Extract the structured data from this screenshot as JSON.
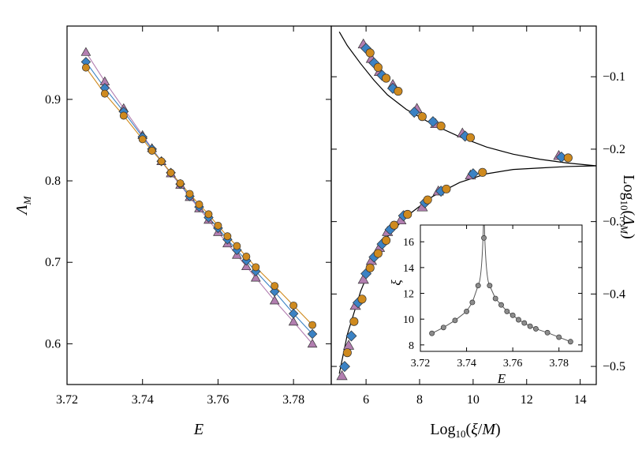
{
  "chart_data": [
    {
      "panel": "left",
      "type": "line",
      "xlabel": "E",
      "ylabel": "Λ_M",
      "xlim": [
        3.72,
        3.79
      ],
      "ylim": [
        0.55,
        0.99
      ],
      "xticks": [
        3.72,
        3.74,
        3.76,
        3.78
      ],
      "xtick_labels": [
        "3.72",
        "3.74",
        "3.76",
        "3.78"
      ],
      "yticks": [
        0.6,
        0.7,
        0.8,
        0.9
      ],
      "ytick_labels": [
        "0.6",
        "0.7",
        "0.8",
        "0.9"
      ],
      "x": [
        3.725,
        3.73,
        3.735,
        3.74,
        3.7425,
        3.745,
        3.7475,
        3.75,
        3.7525,
        3.755,
        3.7575,
        3.76,
        3.7625,
        3.765,
        3.7675,
        3.77,
        3.775,
        3.78,
        3.785
      ],
      "series": [
        {
          "marker": "triangle",
          "color": "#b27eb0",
          "values": [
            0.958,
            0.922,
            0.889,
            0.856,
            0.84,
            0.824,
            0.809,
            0.795,
            0.78,
            0.766,
            0.752,
            0.737,
            0.723,
            0.709,
            0.695,
            0.681,
            0.653,
            0.627,
            0.6
          ]
        },
        {
          "marker": "diamond",
          "color": "#3b82c4",
          "values": [
            0.946,
            0.914,
            0.885,
            0.854,
            0.839,
            0.824,
            0.81,
            0.796,
            0.781,
            0.768,
            0.755,
            0.742,
            0.728,
            0.715,
            0.702,
            0.689,
            0.664,
            0.637,
            0.612
          ]
        },
        {
          "marker": "circle",
          "color": "#cf8a1e",
          "values": [
            0.939,
            0.907,
            0.88,
            0.851,
            0.837,
            0.824,
            0.81,
            0.797,
            0.784,
            0.771,
            0.759,
            0.745,
            0.732,
            0.72,
            0.707,
            0.694,
            0.671,
            0.647,
            0.623
          ]
        }
      ]
    },
    {
      "panel": "right",
      "type": "scatter",
      "xlabel": "Log₁₀(ξ/M)",
      "ylabel": "Log₁₀(Λ_M)",
      "xlim": [
        4.7,
        14.6
      ],
      "ylim": [
        -0.525,
        -0.03
      ],
      "xticks": [
        6,
        8,
        10,
        12,
        14
      ],
      "xtick_labels": [
        "6",
        "8",
        "10",
        "12",
        "14"
      ],
      "yticks": [
        -0.5,
        -0.4,
        -0.3,
        -0.2,
        -0.1
      ],
      "ytick_labels": [
        "−0.5",
        "−0.4",
        "−0.3",
        "−0.2",
        "−0.1"
      ],
      "y_axis_side": "right",
      "scaling_curve": {
        "x": [
          5.0,
          5.3,
          5.8,
          6.3,
          6.8,
          7.5,
          8.5,
          9.5,
          10.5,
          11.5,
          12.5,
          13.5,
          14.6
        ],
        "upper": [
          -0.038,
          -0.057,
          -0.082,
          -0.105,
          -0.125,
          -0.145,
          -0.166,
          -0.183,
          -0.197,
          -0.207,
          -0.214,
          -0.219,
          -0.223
        ],
        "lower": [
          -0.51,
          -0.456,
          -0.396,
          -0.351,
          -0.321,
          -0.293,
          -0.265,
          -0.246,
          -0.234,
          -0.228,
          -0.226,
          -0.224,
          -0.223
        ]
      },
      "series": [
        {
          "marker": "triangle",
          "color": "#b27eb0",
          "x": [
            5.9,
            6.2,
            6.5,
            7.0,
            7.9,
            8.6,
            9.6,
            13.2,
            5.1,
            5.35,
            5.6,
            5.9,
            6.2,
            6.5,
            6.8,
            7.3,
            8.1,
            8.7,
            9.9
          ],
          "y": [
            -0.055,
            -0.075,
            -0.093,
            -0.111,
            -0.144,
            -0.165,
            -0.178,
            -0.209,
            -0.513,
            -0.471,
            -0.416,
            -0.38,
            -0.354,
            -0.336,
            -0.314,
            -0.298,
            -0.28,
            -0.258,
            -0.236
          ]
        },
        {
          "marker": "diamond",
          "color": "#3b82c4",
          "x": [
            6.0,
            6.3,
            6.6,
            7.0,
            7.8,
            8.5,
            9.7,
            13.3,
            5.2,
            5.45,
            5.7,
            6.0,
            6.3,
            6.6,
            6.9,
            7.4,
            8.2,
            8.8,
            10.0
          ],
          "y": [
            -0.061,
            -0.081,
            -0.098,
            -0.116,
            -0.149,
            -0.162,
            -0.182,
            -0.211,
            -0.5,
            -0.458,
            -0.412,
            -0.372,
            -0.349,
            -0.331,
            -0.311,
            -0.292,
            -0.274,
            -0.258,
            -0.234
          ]
        },
        {
          "marker": "circle",
          "color": "#cf8a1e",
          "x": [
            6.15,
            6.45,
            6.75,
            7.2,
            8.1,
            8.8,
            9.9,
            13.55,
            5.3,
            5.55,
            5.85,
            6.15,
            6.45,
            6.75,
            7.05,
            7.55,
            8.3,
            9.0,
            10.35
          ],
          "y": [
            -0.067,
            -0.087,
            -0.102,
            -0.12,
            -0.155,
            -0.168,
            -0.184,
            -0.212,
            -0.481,
            -0.438,
            -0.407,
            -0.364,
            -0.344,
            -0.326,
            -0.305,
            -0.29,
            -0.27,
            -0.255,
            -0.232
          ]
        }
      ]
    },
    {
      "panel": "inset",
      "type": "line",
      "xlabel": "E",
      "ylabel": "ξ",
      "xlim": [
        3.72,
        3.79
      ],
      "ylim": [
        7.5,
        17.3
      ],
      "xticks": [
        3.72,
        3.74,
        3.76,
        3.78
      ],
      "xtick_labels": [
        "3.72",
        "3.74",
        "3.76",
        "3.78"
      ],
      "yticks": [
        8,
        10,
        12,
        14,
        16
      ],
      "ytick_labels": [
        "8",
        "10",
        "12",
        "14",
        "16"
      ],
      "points": {
        "x": [
          3.725,
          3.73,
          3.735,
          3.74,
          3.7425,
          3.745,
          3.7475,
          3.75,
          3.7525,
          3.755,
          3.7575,
          3.76,
          3.7625,
          3.765,
          3.7675,
          3.77,
          3.775,
          3.78,
          3.785
        ],
        "y": [
          8.9,
          9.35,
          9.9,
          10.6,
          11.3,
          12.6,
          16.3,
          12.6,
          11.6,
          11.1,
          10.6,
          10.3,
          9.95,
          9.7,
          9.45,
          9.25,
          8.95,
          8.6,
          8.25
        ]
      },
      "curve_peak": {
        "x": 3.7475,
        "y": 17.3
      }
    }
  ]
}
